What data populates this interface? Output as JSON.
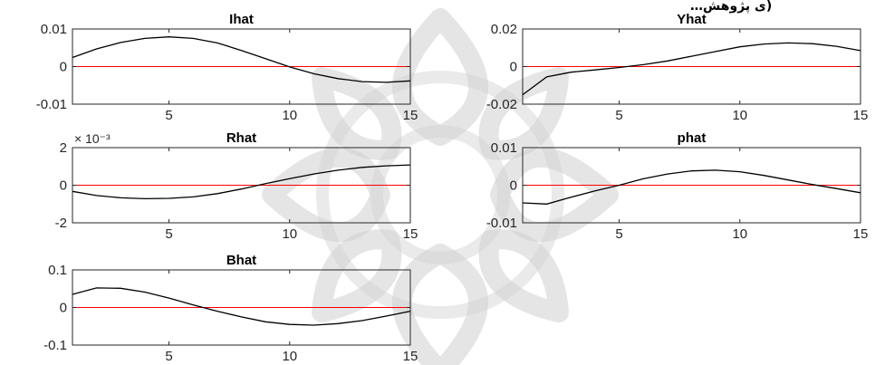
{
  "header_fragment": "…ی پژوهش)",
  "chart_data": [
    {
      "type": "line",
      "title": "Ihat",
      "xlim": [
        1,
        15
      ],
      "ylim": [
        -0.01,
        0.01
      ],
      "xticks": [
        5,
        10,
        15
      ],
      "yticks": [
        -0.01,
        0,
        0.01
      ],
      "xtick_labels": [
        "5",
        "10",
        "15"
      ],
      "ytick_labels": [
        "-0.01",
        "0",
        "0.01"
      ],
      "exponent_label": "",
      "reference_line": 0,
      "colors": {
        "series": "#000000",
        "reference": "#ff0000"
      },
      "x": [
        1,
        2,
        3,
        4,
        5,
        6,
        7,
        8,
        9,
        10,
        11,
        12,
        13,
        14,
        15
      ],
      "series": [
        {
          "values": [
            0.0024,
            0.0047,
            0.0064,
            0.0075,
            0.0079,
            0.0075,
            0.0063,
            0.0043,
            0.0021,
            -0.0001,
            -0.0019,
            -0.0032,
            -0.004,
            -0.0042,
            -0.0038
          ]
        }
      ]
    },
    {
      "type": "line",
      "title": "Yhat",
      "xlim": [
        1,
        15
      ],
      "ylim": [
        -0.02,
        0.02
      ],
      "xticks": [
        5,
        10,
        15
      ],
      "yticks": [
        -0.02,
        0,
        0.02
      ],
      "xtick_labels": [
        "5",
        "10",
        "15"
      ],
      "ytick_labels": [
        "-0.02",
        "0",
        "0.02"
      ],
      "exponent_label": "",
      "reference_line": 0,
      "colors": {
        "series": "#000000",
        "reference": "#ff0000"
      },
      "x": [
        1,
        2,
        3,
        4,
        5,
        6,
        7,
        8,
        9,
        10,
        11,
        12,
        13,
        14,
        15
      ],
      "series": [
        {
          "values": [
            -0.015,
            -0.0055,
            -0.003,
            -0.0018,
            -0.0005,
            0.001,
            0.003,
            0.0055,
            0.008,
            0.0105,
            0.012,
            0.0126,
            0.0122,
            0.0108,
            0.0085
          ]
        }
      ]
    },
    {
      "type": "line",
      "title": "Rhat",
      "xlim": [
        1,
        15
      ],
      "ylim": [
        -0.002,
        0.002
      ],
      "xticks": [
        5,
        10,
        15
      ],
      "yticks": [
        -0.002,
        0,
        0.002
      ],
      "xtick_labels": [
        "5",
        "10",
        "15"
      ],
      "ytick_labels": [
        "-2",
        "0",
        "2"
      ],
      "exponent_label": "× 10⁻³",
      "reference_line": 0,
      "colors": {
        "series": "#000000",
        "reference": "#ff0000"
      },
      "x": [
        1,
        2,
        3,
        4,
        5,
        6,
        7,
        8,
        9,
        10,
        11,
        12,
        13,
        14,
        15
      ],
      "series": [
        {
          "values": [
            -0.00033,
            -0.00055,
            -0.00067,
            -0.00072,
            -0.0007,
            -0.00062,
            -0.00045,
            -0.0002,
            8e-05,
            0.00035,
            0.0006,
            0.0008,
            0.00095,
            0.00103,
            0.00108
          ]
        }
      ]
    },
    {
      "type": "line",
      "title": "phat",
      "xlim": [
        1,
        15
      ],
      "ylim": [
        -0.01,
        0.01
      ],
      "xticks": [
        5,
        10,
        15
      ],
      "yticks": [
        -0.01,
        0,
        0.01
      ],
      "xtick_labels": [
        "5",
        "10",
        "15"
      ],
      "ytick_labels": [
        "-0.01",
        "0",
        "0.01"
      ],
      "exponent_label": "",
      "reference_line": 0,
      "colors": {
        "series": "#000000",
        "reference": "#ff0000"
      },
      "x": [
        1,
        2,
        3,
        4,
        5,
        6,
        7,
        8,
        9,
        10,
        11,
        12,
        13,
        14,
        15
      ],
      "series": [
        {
          "values": [
            -0.0047,
            -0.005,
            -0.0032,
            -0.0015,
            0.0,
            0.0017,
            0.003,
            0.0038,
            0.004,
            0.0036,
            0.0026,
            0.0014,
            0.0002,
            -0.0009,
            -0.002
          ]
        }
      ]
    },
    {
      "type": "line",
      "title": "Bhat",
      "xlim": [
        1,
        15
      ],
      "ylim": [
        -0.1,
        0.1
      ],
      "xticks": [
        5,
        10,
        15
      ],
      "yticks": [
        -0.1,
        0,
        0.1
      ],
      "xtick_labels": [
        "5",
        "10",
        "15"
      ],
      "ytick_labels": [
        "-0.1",
        "0",
        "0.1"
      ],
      "exponent_label": "",
      "reference_line": 0,
      "colors": {
        "series": "#000000",
        "reference": "#ff0000"
      },
      "x": [
        1,
        2,
        3,
        4,
        5,
        6,
        7,
        8,
        9,
        10,
        11,
        12,
        13,
        14,
        15
      ],
      "series": [
        {
          "values": [
            0.035,
            0.052,
            0.051,
            0.041,
            0.025,
            0.007,
            -0.01,
            -0.025,
            -0.038,
            -0.045,
            -0.047,
            -0.043,
            -0.035,
            -0.023,
            -0.01
          ]
        }
      ]
    }
  ]
}
